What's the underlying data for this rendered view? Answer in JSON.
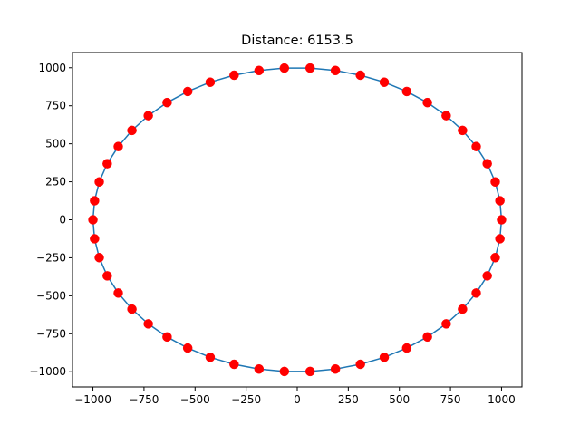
{
  "chart_data": {
    "type": "line",
    "title": "Distance: 6153.5",
    "xlabel": "",
    "ylabel": "",
    "xlim": [
      -1100,
      1100
    ],
    "ylim": [
      -1100,
      1100
    ],
    "x_ticks": [
      -1000,
      -750,
      -500,
      -250,
      0,
      250,
      500,
      750,
      1000
    ],
    "y_ticks": [
      -1000,
      -750,
      -500,
      -250,
      0,
      250,
      500,
      750,
      1000
    ],
    "grid": false,
    "line_color": "#1f77b4",
    "marker_color": "#ff0000",
    "points": [
      [
        1000,
        0
      ],
      [
        992,
        125
      ],
      [
        969,
        249
      ],
      [
        930,
        369
      ],
      [
        876,
        482
      ],
      [
        809,
        588
      ],
      [
        729,
        685
      ],
      [
        637,
        771
      ],
      [
        536,
        844
      ],
      [
        426,
        905
      ],
      [
        309,
        951
      ],
      [
        187,
        982
      ],
      [
        63,
        998
      ],
      [
        -63,
        998
      ],
      [
        -187,
        982
      ],
      [
        -309,
        951
      ],
      [
        -426,
        905
      ],
      [
        -536,
        844
      ],
      [
        -637,
        771
      ],
      [
        -729,
        685
      ],
      [
        -809,
        588
      ],
      [
        -876,
        482
      ],
      [
        -930,
        369
      ],
      [
        -969,
        249
      ],
      [
        -992,
        125
      ],
      [
        -1000,
        0
      ],
      [
        -992,
        -125
      ],
      [
        -969,
        -249
      ],
      [
        -930,
        -369
      ],
      [
        -876,
        -482
      ],
      [
        -809,
        -588
      ],
      [
        -729,
        -685
      ],
      [
        -637,
        -771
      ],
      [
        -536,
        -844
      ],
      [
        -426,
        -905
      ],
      [
        -309,
        -951
      ],
      [
        -187,
        -982
      ],
      [
        -63,
        -998
      ],
      [
        63,
        -998
      ],
      [
        187,
        -982
      ],
      [
        309,
        -951
      ],
      [
        426,
        -905
      ],
      [
        536,
        -844
      ],
      [
        637,
        -771
      ],
      [
        729,
        -685
      ],
      [
        809,
        -588
      ],
      [
        876,
        -482
      ],
      [
        930,
        -369
      ],
      [
        969,
        -249
      ],
      [
        992,
        -125
      ]
    ]
  }
}
